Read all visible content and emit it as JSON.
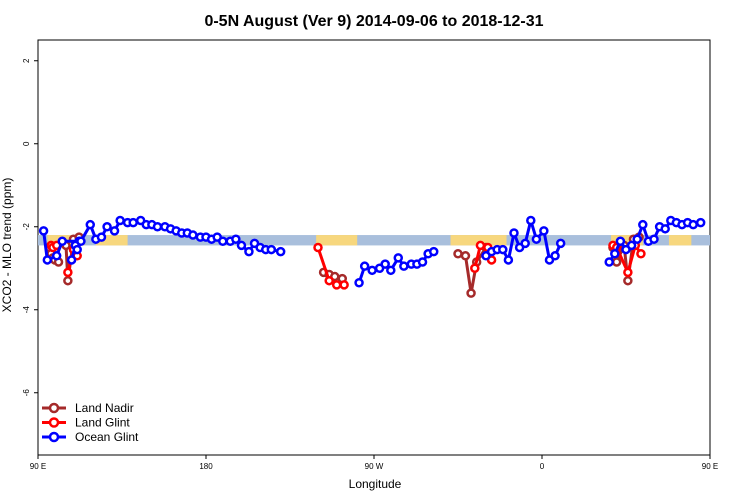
{
  "chart_data": {
    "type": "line",
    "title": "0-5N August (Ver 9)   2014-09-06 to 2018-12-31",
    "xlabel": "Longitude",
    "ylabel": "XCO2 - MLO trend (ppm)",
    "xlim": [
      90,
      450
    ],
    "ylim": [
      -7.5,
      2.5
    ],
    "x_ticks": [
      {
        "value": 90,
        "label": "90 E"
      },
      {
        "value": 180,
        "label": "180"
      },
      {
        "value": 270,
        "label": "90 W"
      },
      {
        "value": 360,
        "label": "0"
      },
      {
        "value": 450,
        "label": "90 E"
      },
      {
        "value": 540,
        "label": "180"
      }
    ],
    "y_ticks": [
      {
        "value": 2,
        "label": "2"
      },
      {
        "value": 0,
        "label": "0"
      },
      {
        "value": -2,
        "label": "-2"
      },
      {
        "value": -4,
        "label": "-4"
      },
      {
        "value": -6,
        "label": "-6"
      }
    ],
    "grid": false,
    "legend_position": "bottom-left",
    "band": {
      "y_min": -2.45,
      "y_max": -2.2,
      "base_color": "#a9bfdc",
      "land_color": "#f7d77e",
      "land_segments": [
        [
          95,
          115
        ],
        [
          121,
          138
        ],
        [
          239,
          261
        ],
        [
          311,
          341
        ],
        [
          397,
          414
        ],
        [
          428,
          440
        ]
      ]
    },
    "series": [
      {
        "name": "Land Nadir",
        "color": "#a52a2a",
        "segments": [
          [
            [
              96,
              -2.5
            ],
            [
              97,
              -2.65
            ],
            [
              98,
              -2.75
            ],
            [
              99,
              -2.8
            ],
            [
              101,
              -2.85
            ]
          ],
          [
            [
              105,
              -2.45
            ],
            [
              106,
              -3.3
            ],
            [
              109,
              -2.3
            ],
            [
              112,
              -2.25
            ]
          ],
          [
            [
              243,
              -3.1
            ],
            [
              246,
              -3.15
            ],
            [
              249,
              -3.2
            ],
            [
              253,
              -3.25
            ]
          ],
          [
            [
              315,
              -2.65
            ],
            [
              319,
              -2.7
            ],
            [
              322,
              -3.6
            ],
            [
              325,
              -2.85
            ],
            [
              330,
              -2.5
            ]
          ],
          [
            [
              398,
              -2.5
            ],
            [
              400,
              -2.85
            ],
            [
              404,
              -2.45
            ],
            [
              406,
              -3.3
            ],
            [
              409,
              -2.3
            ],
            [
              412,
              -2.25
            ]
          ]
        ]
      },
      {
        "name": "Land Glint",
        "color": "#ff0000",
        "segments": [
          [
            [
              97,
              -2.45
            ],
            [
              98,
              -2.5
            ],
            [
              100,
              -2.45
            ]
          ],
          [
            [
              106,
              -3.1
            ],
            [
              109,
              -2.55
            ],
            [
              111,
              -2.7
            ]
          ],
          [
            [
              240,
              -2.5
            ],
            [
              246,
              -3.3
            ],
            [
              250,
              -3.4
            ],
            [
              254,
              -3.4
            ]
          ],
          [
            [
              324,
              -3.0
            ],
            [
              327,
              -2.45
            ],
            [
              331,
              -2.5
            ],
            [
              333,
              -2.8
            ]
          ],
          [
            [
              398,
              -2.45
            ],
            [
              400,
              -2.5
            ],
            [
              406,
              -3.1
            ],
            [
              410,
              -2.45
            ],
            [
              413,
              -2.65
            ]
          ]
        ]
      },
      {
        "name": "Ocean Glint",
        "color": "#0000ff",
        "segments": [
          [
            [
              93,
              -2.1
            ],
            [
              95,
              -2.8
            ],
            [
              100,
              -2.7
            ],
            [
              103,
              -2.35
            ],
            [
              112,
              -2.35
            ]
          ],
          [
            [
              108,
              -2.8
            ],
            [
              110,
              -2.45
            ],
            [
              111,
              -2.55
            ],
            [
              113,
              -2.35
            ],
            [
              118,
              -1.95
            ],
            [
              121,
              -2.3
            ],
            [
              124,
              -2.25
            ],
            [
              127,
              -2.0
            ],
            [
              131,
              -2.1
            ],
            [
              134,
              -1.85
            ],
            [
              138,
              -1.9
            ],
            [
              141,
              -1.9
            ],
            [
              145,
              -1.85
            ],
            [
              148,
              -1.95
            ],
            [
              151,
              -1.95
            ],
            [
              154,
              -2.0
            ],
            [
              158,
              -2.0
            ],
            [
              161,
              -2.05
            ],
            [
              164,
              -2.1
            ],
            [
              167,
              -2.15
            ],
            [
              170,
              -2.15
            ],
            [
              173,
              -2.2
            ],
            [
              177,
              -2.25
            ],
            [
              180,
              -2.25
            ],
            [
              183,
              -2.3
            ],
            [
              186,
              -2.25
            ],
            [
              189,
              -2.35
            ],
            [
              193,
              -2.35
            ],
            [
              196,
              -2.3
            ],
            [
              199,
              -2.45
            ],
            [
              203,
              -2.6
            ],
            [
              206,
              -2.4
            ],
            [
              209,
              -2.5
            ],
            [
              212,
              -2.55
            ],
            [
              215,
              -2.55
            ],
            [
              220,
              -2.6
            ]
          ],
          [
            [
              262,
              -3.35
            ],
            [
              265,
              -2.95
            ],
            [
              269,
              -3.05
            ],
            [
              273,
              -3.0
            ],
            [
              276,
              -2.9
            ],
            [
              279,
              -3.05
            ],
            [
              283,
              -2.75
            ],
            [
              286,
              -2.95
            ],
            [
              290,
              -2.9
            ],
            [
              293,
              -2.9
            ],
            [
              296,
              -2.85
            ],
            [
              299,
              -2.65
            ],
            [
              302,
              -2.6
            ]
          ],
          [
            [
              330,
              -2.7
            ],
            [
              333,
              -2.6
            ],
            [
              336,
              -2.55
            ],
            [
              339,
              -2.55
            ],
            [
              342,
              -2.8
            ],
            [
              345,
              -2.15
            ],
            [
              348,
              -2.5
            ],
            [
              351,
              -2.4
            ],
            [
              354,
              -1.85
            ],
            [
              357,
              -2.3
            ],
            [
              361,
              -2.1
            ],
            [
              364,
              -2.8
            ],
            [
              367,
              -2.7
            ],
            [
              370,
              -2.4
            ]
          ],
          [
            [
              396,
              -2.85
            ],
            [
              399,
              -2.65
            ],
            [
              402,
              -2.35
            ],
            [
              405,
              -2.55
            ],
            [
              408,
              -2.45
            ],
            [
              411,
              -2.3
            ],
            [
              414,
              -1.95
            ],
            [
              417,
              -2.35
            ],
            [
              420,
              -2.3
            ],
            [
              423,
              -2.0
            ],
            [
              426,
              -2.05
            ],
            [
              429,
              -1.85
            ],
            [
              432,
              -1.9
            ],
            [
              435,
              -1.95
            ],
            [
              438,
              -1.9
            ],
            [
              441,
              -1.95
            ],
            [
              445,
              -1.9
            ]
          ]
        ]
      }
    ]
  }
}
